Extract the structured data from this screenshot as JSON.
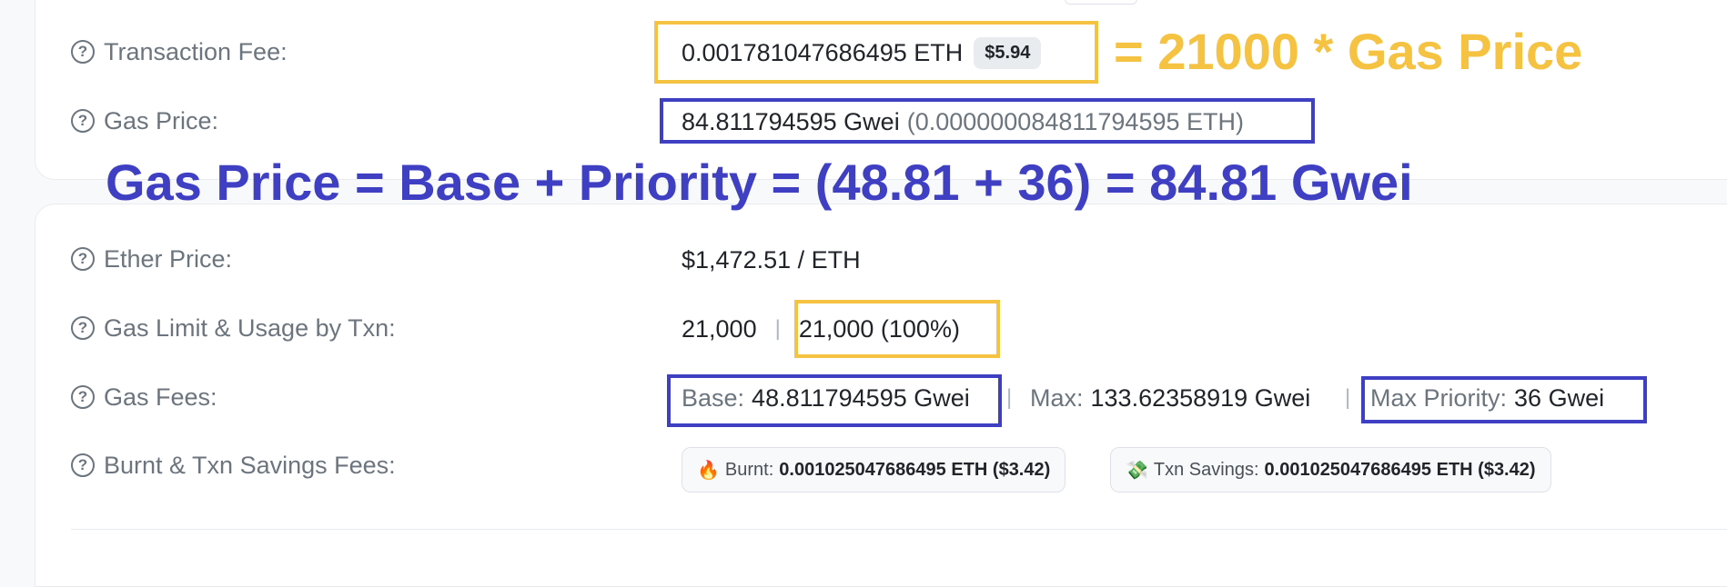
{
  "rows": {
    "transaction_fee": {
      "label": "Transaction Fee:",
      "value": "0.001781047686495 ETH",
      "usd": "$5.94"
    },
    "gas_price": {
      "label": "Gas Price:",
      "gwei": "84.811794595 Gwei",
      "eth": "(0.000000084811794595 ETH)"
    },
    "ether_price": {
      "label": "Ether Price:",
      "value": "$1,472.51 / ETH"
    },
    "gas_limit": {
      "label": "Gas Limit & Usage by Txn:",
      "limit": "21,000",
      "separator": "|",
      "usage": "21,000 (100%)"
    },
    "gas_fees": {
      "label": "Gas Fees:",
      "base_label": "Base:",
      "base_value": "48.811794595 Gwei",
      "max_label": "Max:",
      "max_value": "133.62358919 Gwei",
      "priority_label": "Max Priority:",
      "priority_value": "36 Gwei",
      "separator": "|"
    },
    "burnt": {
      "label": "Burnt & Txn Savings Fees:",
      "burnt_label": "Burnt:",
      "burnt_value": "0.001025047686495 ETH ($3.42)",
      "savings_label": "Txn Savings:",
      "savings_value": "0.001025047686495 ETH ($3.42)"
    }
  },
  "annotations": {
    "fee_formula": "= 21000 * Gas Price",
    "gas_formula": "Gas Price = Base + Priority = (48.81 + 36) = 84.81 Gwei"
  },
  "icons": {
    "help": "question-circle-icon",
    "burnt": "fire-icon",
    "savings": "money-icon"
  },
  "colors": {
    "annotation_yellow": "#f5c242",
    "annotation_blue": "#3f3fc4"
  }
}
